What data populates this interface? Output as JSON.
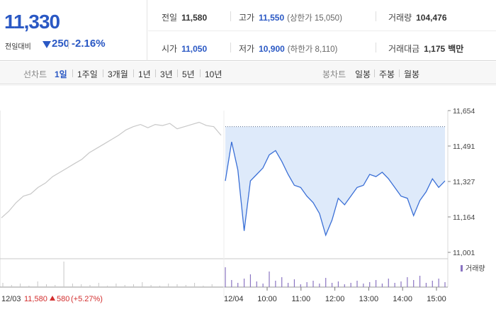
{
  "header": {
    "price": "11,330",
    "change_label": "전일대비",
    "change_value": "250",
    "change_pct": "-2.16%",
    "stats": [
      {
        "key": "전일",
        "value": "11,580",
        "blue": false,
        "sub": ""
      },
      {
        "key": "고가",
        "value": "11,550",
        "blue": true,
        "sub": "(상한가 15,050)"
      },
      {
        "key": "거래량",
        "value": "104,476",
        "blue": false,
        "sub": ""
      },
      {
        "key": "시가",
        "value": "11,050",
        "blue": true,
        "sub": ""
      },
      {
        "key": "저가",
        "value": "10,900",
        "blue": true,
        "sub": "(하한가 8,110)"
      },
      {
        "key": "거래대금",
        "value": "1,175",
        "blue": false,
        "sub": "백만"
      }
    ]
  },
  "toolbar": {
    "line_label": "선차트",
    "line_periods": [
      "1일",
      "1주일",
      "3개월",
      "1년",
      "3년",
      "5년",
      "10년"
    ],
    "active_period": "1일",
    "candle_label": "봉차트",
    "candle_periods": [
      "일봉",
      "주봉",
      "월봉"
    ]
  },
  "colors": {
    "accent_blue": "#2a58c4",
    "line_today": "#3a6fd6",
    "fill_today": "#deeafa",
    "line_prev": "#c8c8c8",
    "volume_bar": "#8a74c2",
    "prev_marker_red": "#d32f2f"
  },
  "chart_data": {
    "type": "line",
    "y_ticks": [
      "11,654",
      "11,491",
      "11,327",
      "11,164",
      "11,001"
    ],
    "ylim": [
      11001,
      11654
    ],
    "prev_day": {
      "date": "12/03",
      "close": "11,580",
      "change": "580",
      "change_pct": "(+5.27%)",
      "series": [
        11160,
        11190,
        11230,
        11260,
        11270,
        11300,
        11320,
        11350,
        11370,
        11390,
        11410,
        11430,
        11460,
        11480,
        11500,
        11520,
        11540,
        11565,
        11580,
        11590,
        11575,
        11590,
        11585,
        11595,
        11570,
        11580,
        11590,
        11600,
        11585,
        11580,
        11540
      ]
    },
    "today": {
      "date": "12/04",
      "x_ticks": [
        "10:00",
        "11:00",
        "12:00",
        "13:00",
        "14:00",
        "15:00"
      ],
      "ref_level": 11580,
      "series": [
        11330,
        11510,
        11380,
        11100,
        11330,
        11360,
        11390,
        11450,
        11470,
        11420,
        11360,
        11310,
        11300,
        11260,
        11230,
        11180,
        11080,
        11150,
        11250,
        11220,
        11260,
        11300,
        11310,
        11360,
        11350,
        11370,
        11340,
        11300,
        11260,
        11250,
        11170,
        11240,
        11280,
        11340,
        11300,
        11330
      ]
    },
    "volume_label": "거래량"
  }
}
